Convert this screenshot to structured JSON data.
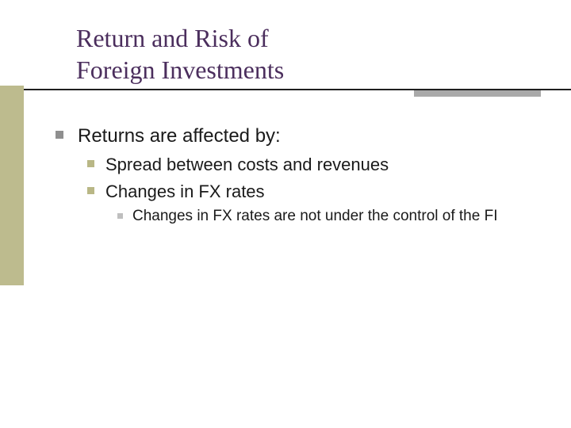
{
  "title": {
    "line1": "Return and Risk of",
    "line2": "Foreign Investments",
    "color": "#4b2e5d",
    "fontsize": 32
  },
  "accent": {
    "left_block_color": "#bdbb8e",
    "rule_line_color": "#1f1f1f",
    "rule_segment_color": "#a9a9a9"
  },
  "bullets": {
    "lvl1_text": "Returns are affected by:",
    "lvl1_bullet_color": "#8f8f8f",
    "lvl1_fontsize": 24,
    "lvl2_items": [
      "Spread between costs and revenues",
      "Changes in FX rates"
    ],
    "lvl2_bullet_color": "#b9b786",
    "lvl2_fontsize": 22,
    "lvl3_items": [
      "Changes in FX rates are not under the control of the FI"
    ],
    "lvl3_bullet_color": "#bfbfbf",
    "lvl3_fontsize": 19
  },
  "background_color": "#ffffff"
}
